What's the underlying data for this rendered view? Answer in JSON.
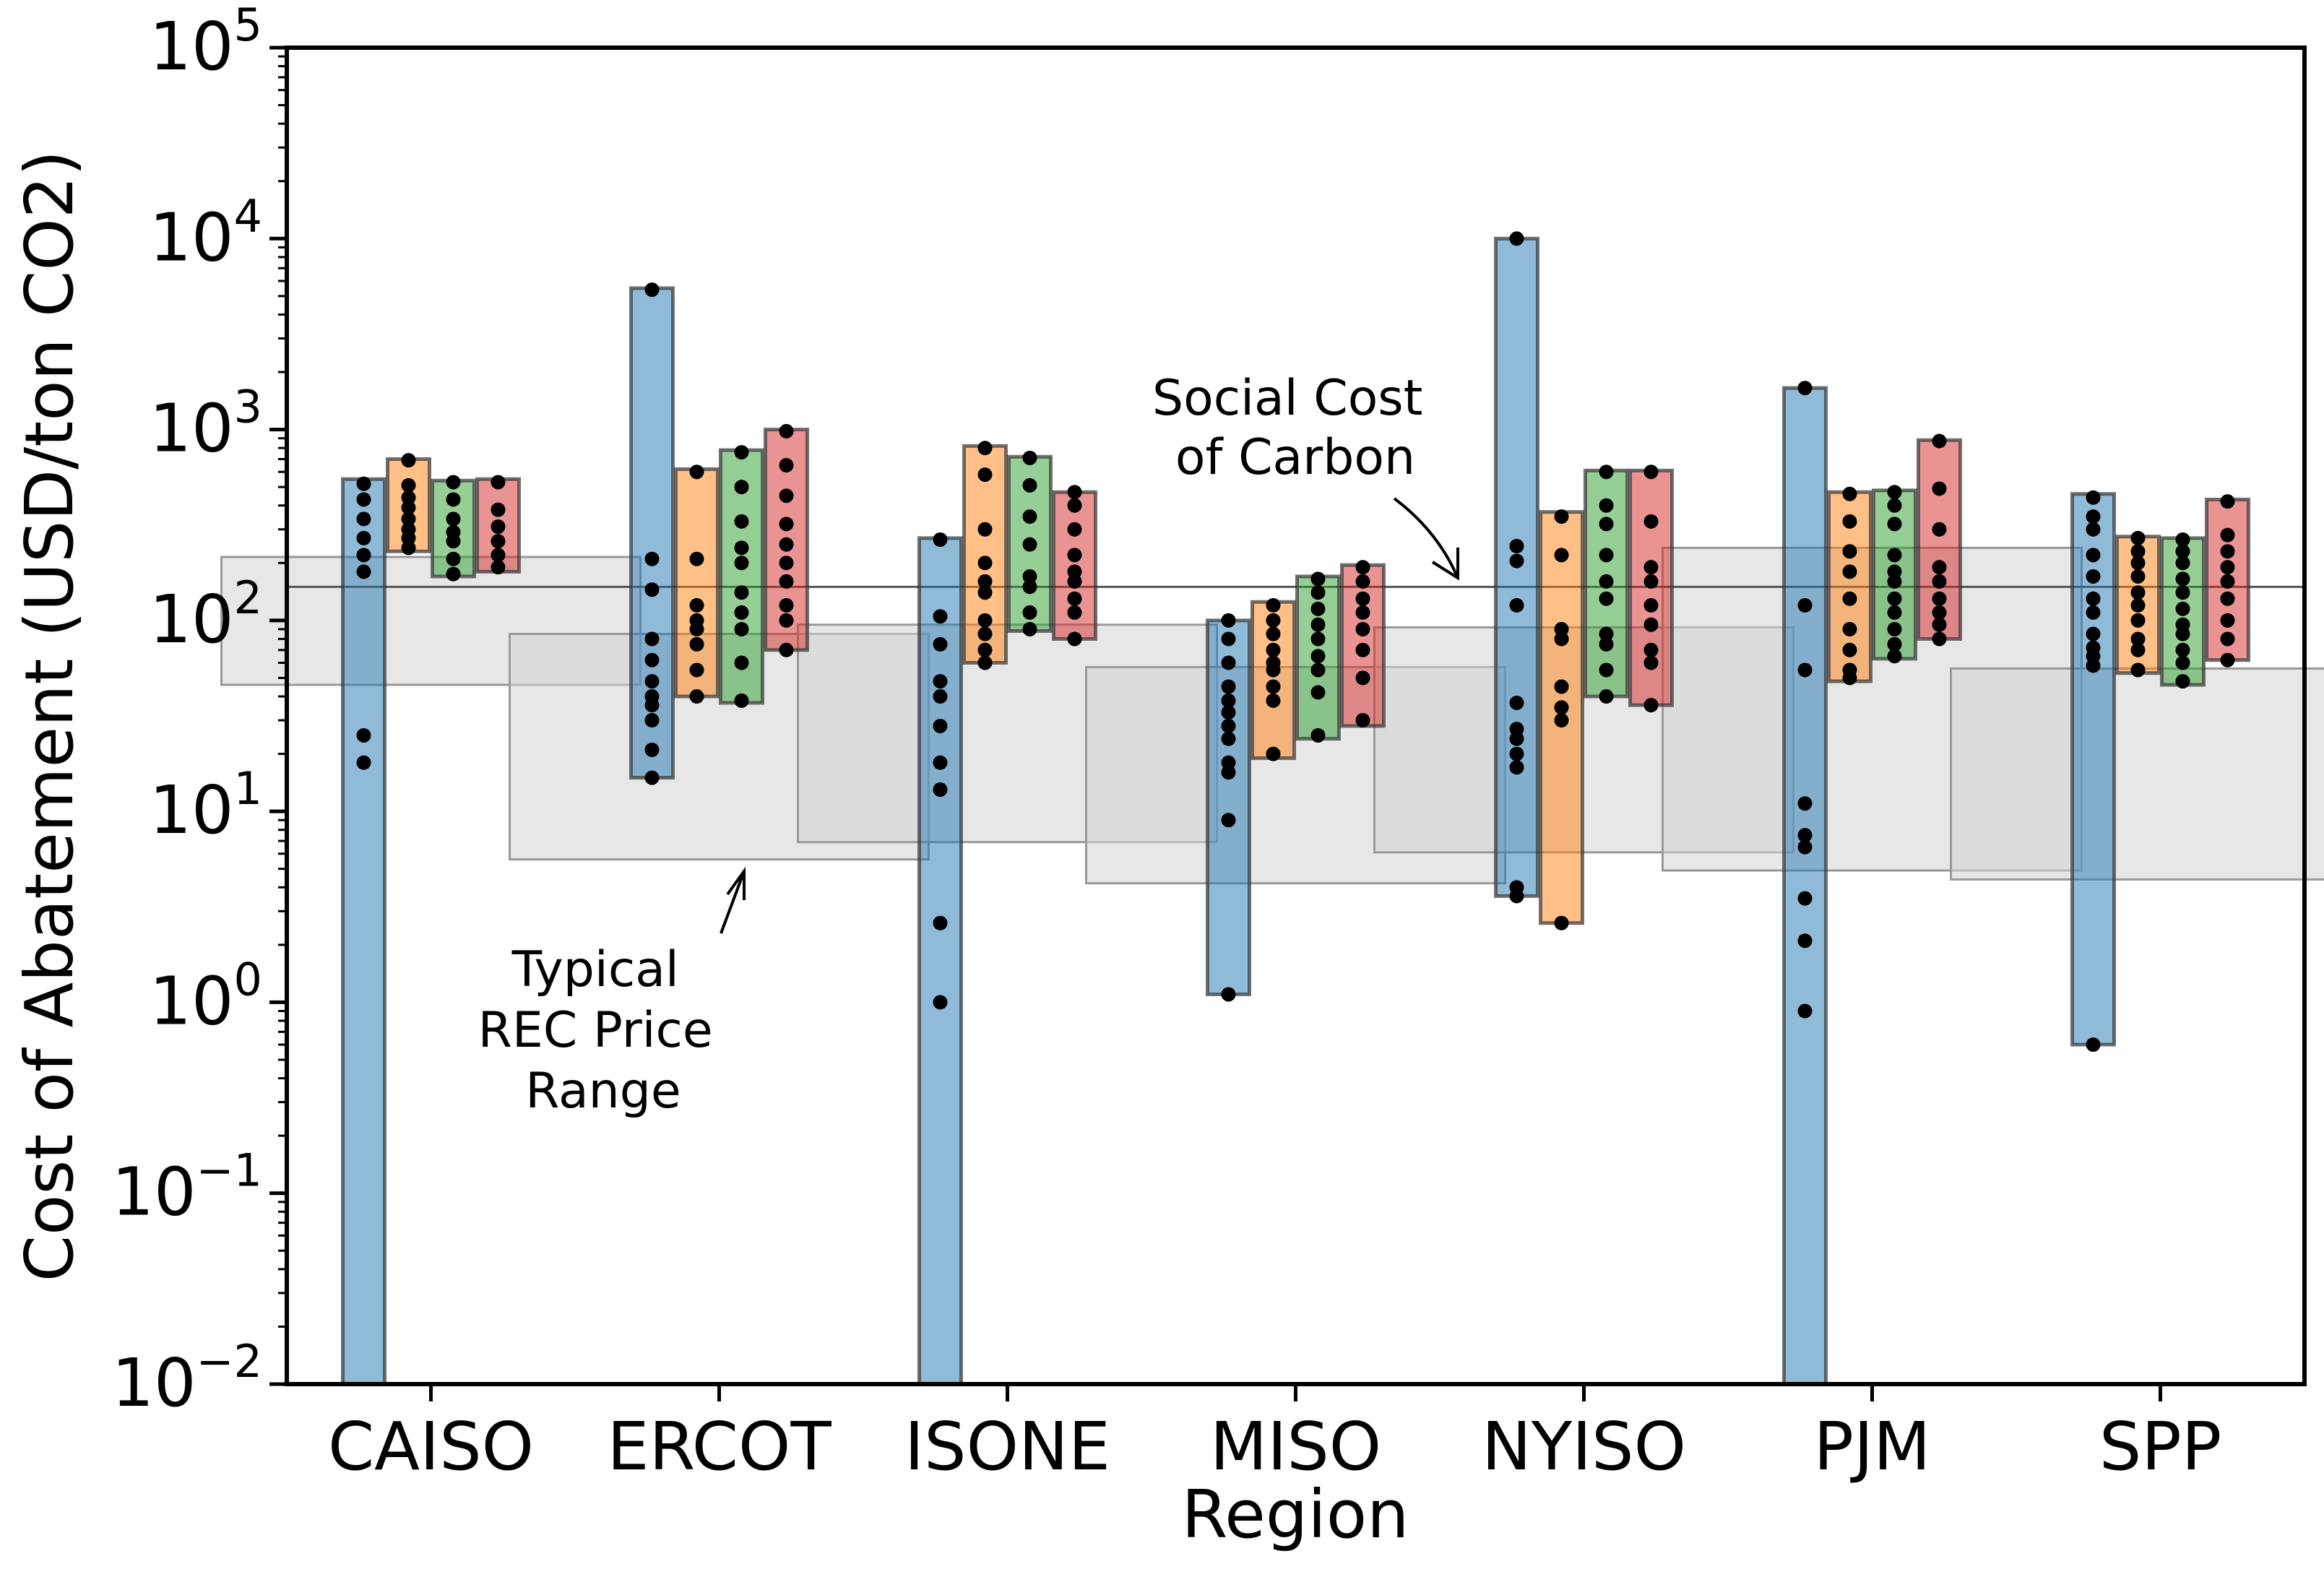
{
  "chart_data": {
    "type": "bar",
    "subtype": "floating range bars with individual points, log scale",
    "xlabel": "Region",
    "ylabel": "Cost of Abatement (USD/ton CO2)",
    "yscale": "log",
    "ylim": [
      0.01,
      100000
    ],
    "yticks": [
      {
        "base": "10",
        "exp": "−2"
      },
      {
        "base": "10",
        "exp": "−1"
      },
      {
        "base": "10",
        "exp": "0"
      },
      {
        "base": "10",
        "exp": "1"
      },
      {
        "base": "10",
        "exp": "2"
      },
      {
        "base": "10",
        "exp": "3"
      },
      {
        "base": "10",
        "exp": "4"
      },
      {
        "base": "10",
        "exp": "5"
      }
    ],
    "grid": false,
    "legend": "none",
    "categories": [
      "CAISO",
      "ERCOT",
      "ISONE",
      "MISO",
      "NYISO",
      "PJM",
      "SPP"
    ],
    "series_colors": [
      "#1f77b4",
      "#ff7f0e",
      "#2ca02c",
      "#d62728"
    ],
    "social_cost_of_carbon": 150,
    "rec_price_range": [
      [
        46,
        215
      ],
      [
        5.6,
        85
      ],
      [
        6.9,
        95
      ],
      [
        4.2,
        57
      ],
      [
        6.1,
        92
      ],
      [
        4.9,
        240
      ],
      [
        4.4,
        56
      ]
    ],
    "series": [
      {
        "ranges": [
          [
            0.01,
            550
          ],
          [
            15,
            5500
          ],
          [
            0.01,
            270
          ],
          [
            1.1,
            100
          ],
          [
            3.6,
            10000
          ],
          [
            0.01,
            1650
          ],
          [
            0.6,
            460
          ]
        ],
        "points": [
          [
            520,
            430,
            340,
            270,
            220,
            180,
            25,
            18
          ],
          [
            5400,
            210,
            145,
            80,
            62,
            48,
            40,
            36,
            30,
            21,
            15
          ],
          [
            265,
            105,
            75,
            48,
            40,
            28,
            18,
            13,
            2.6,
            1.0
          ],
          [
            100,
            80,
            60,
            45,
            38,
            33,
            28,
            24,
            18,
            16,
            9,
            1.1
          ],
          [
            10000,
            245,
            205,
            120,
            37,
            27,
            24,
            20,
            17,
            4.0,
            3.6
          ],
          [
            1650,
            120,
            55,
            11,
            7.5,
            6.5,
            3.5,
            2.1,
            0.9
          ],
          [
            440,
            350,
            300,
            220,
            170,
            130,
            110,
            85,
            72,
            65,
            58,
            0.6
          ]
        ]
      },
      {
        "ranges": [
          [
            230,
            700
          ],
          [
            40,
            620
          ],
          [
            60,
            820
          ],
          [
            19,
            125
          ],
          [
            2.6,
            370
          ],
          [
            48,
            470
          ],
          [
            53,
            275
          ]
        ],
        "points": [
          [
            690,
            510,
            440,
            390,
            340,
            300,
            270,
            240
          ],
          [
            600,
            210,
            120,
            100,
            90,
            75,
            55,
            40
          ],
          [
            800,
            580,
            300,
            200,
            160,
            140,
            100,
            85,
            70,
            60
          ],
          [
            120,
            100,
            85,
            70,
            60,
            55,
            45,
            38,
            20
          ],
          [
            350,
            220,
            90,
            80,
            45,
            35,
            30,
            2.6
          ],
          [
            460,
            330,
            230,
            180,
            130,
            90,
            70,
            55,
            50
          ],
          [
            270,
            230,
            200,
            170,
            140,
            120,
            100,
            80,
            70,
            55
          ]
        ]
      },
      {
        "ranges": [
          [
            170,
            540
          ],
          [
            37,
            780
          ],
          [
            88,
            720
          ],
          [
            24,
            170
          ],
          [
            40,
            610
          ],
          [
            63,
            480
          ],
          [
            46,
            270
          ]
        ],
        "points": [
          [
            530,
            430,
            340,
            290,
            260,
            210,
            175
          ],
          [
            760,
            500,
            330,
            240,
            200,
            140,
            110,
            90,
            60,
            38
          ],
          [
            710,
            510,
            350,
            250,
            170,
            150,
            110,
            90
          ],
          [
            165,
            140,
            115,
            95,
            80,
            65,
            55,
            42,
            25
          ],
          [
            600,
            400,
            320,
            220,
            160,
            130,
            85,
            75,
            55,
            40
          ],
          [
            470,
            400,
            320,
            220,
            180,
            160,
            130,
            110,
            90,
            75,
            65
          ],
          [
            265,
            230,
            200,
            165,
            140,
            115,
            95,
            85,
            70,
            60,
            48
          ]
        ]
      },
      {
        "ranges": [
          [
            180,
            550
          ],
          [
            70,
            1000
          ],
          [
            80,
            470
          ],
          [
            28,
            195
          ],
          [
            36,
            610
          ],
          [
            80,
            880
          ],
          [
            62,
            430
          ]
        ],
        "points": [
          [
            530,
            380,
            310,
            260,
            220,
            190
          ],
          [
            980,
            650,
            450,
            320,
            250,
            200,
            160,
            120,
            100,
            70
          ],
          [
            470,
            400,
            300,
            220,
            180,
            160,
            130,
            110,
            80
          ],
          [
            190,
            160,
            130,
            110,
            90,
            70,
            50,
            30
          ],
          [
            600,
            330,
            190,
            160,
            120,
            95,
            70,
            60,
            36
          ],
          [
            870,
            490,
            300,
            190,
            160,
            130,
            110,
            95,
            80
          ],
          [
            420,
            280,
            230,
            190,
            160,
            130,
            100,
            80,
            62
          ]
        ]
      }
    ],
    "annotations": [
      {
        "id": "rec",
        "lines": [
          "Typical",
          "REC Price",
          "Range"
        ]
      },
      {
        "id": "scc",
        "lines": [
          "Social Cost",
          "of Carbon"
        ]
      }
    ]
  }
}
